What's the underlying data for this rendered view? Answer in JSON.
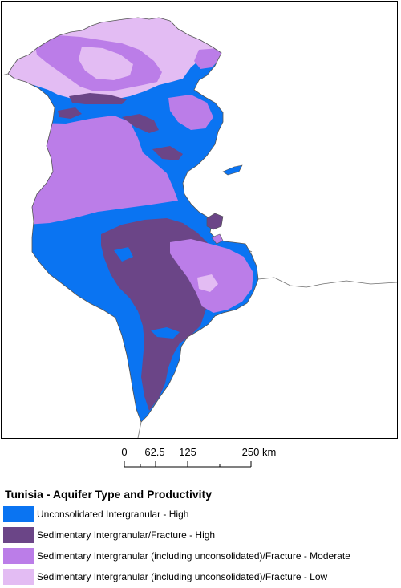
{
  "map": {
    "colors": {
      "unconsolidated_high": "#0a74f2",
      "sedimentary_high": "#6b4587",
      "sedimentary_moderate": "#bb7de8",
      "sedimentary_low": "#e3bcf3",
      "boundary": "#6e6e6e",
      "frame": "#000000"
    }
  },
  "scale_bar": {
    "labels": [
      "0",
      "62.5",
      "125",
      "250 km"
    ]
  },
  "legend": {
    "title": "Tunisia - Aquifer Type and Productivity",
    "items": [
      {
        "label": "Unconsolidated Intergranular - High",
        "color": "#0a74f2"
      },
      {
        "label": "Sedimentary Intergranular/Fracture - High",
        "color": "#6b4587"
      },
      {
        "label": "Sedimentary Intergranular (including unconsolidated)/Fracture - Moderate",
        "color": "#bb7de8"
      },
      {
        "label": "Sedimentary Intergranular (including unconsolidated)/Fracture - Low",
        "color": "#e3bcf3"
      }
    ]
  }
}
